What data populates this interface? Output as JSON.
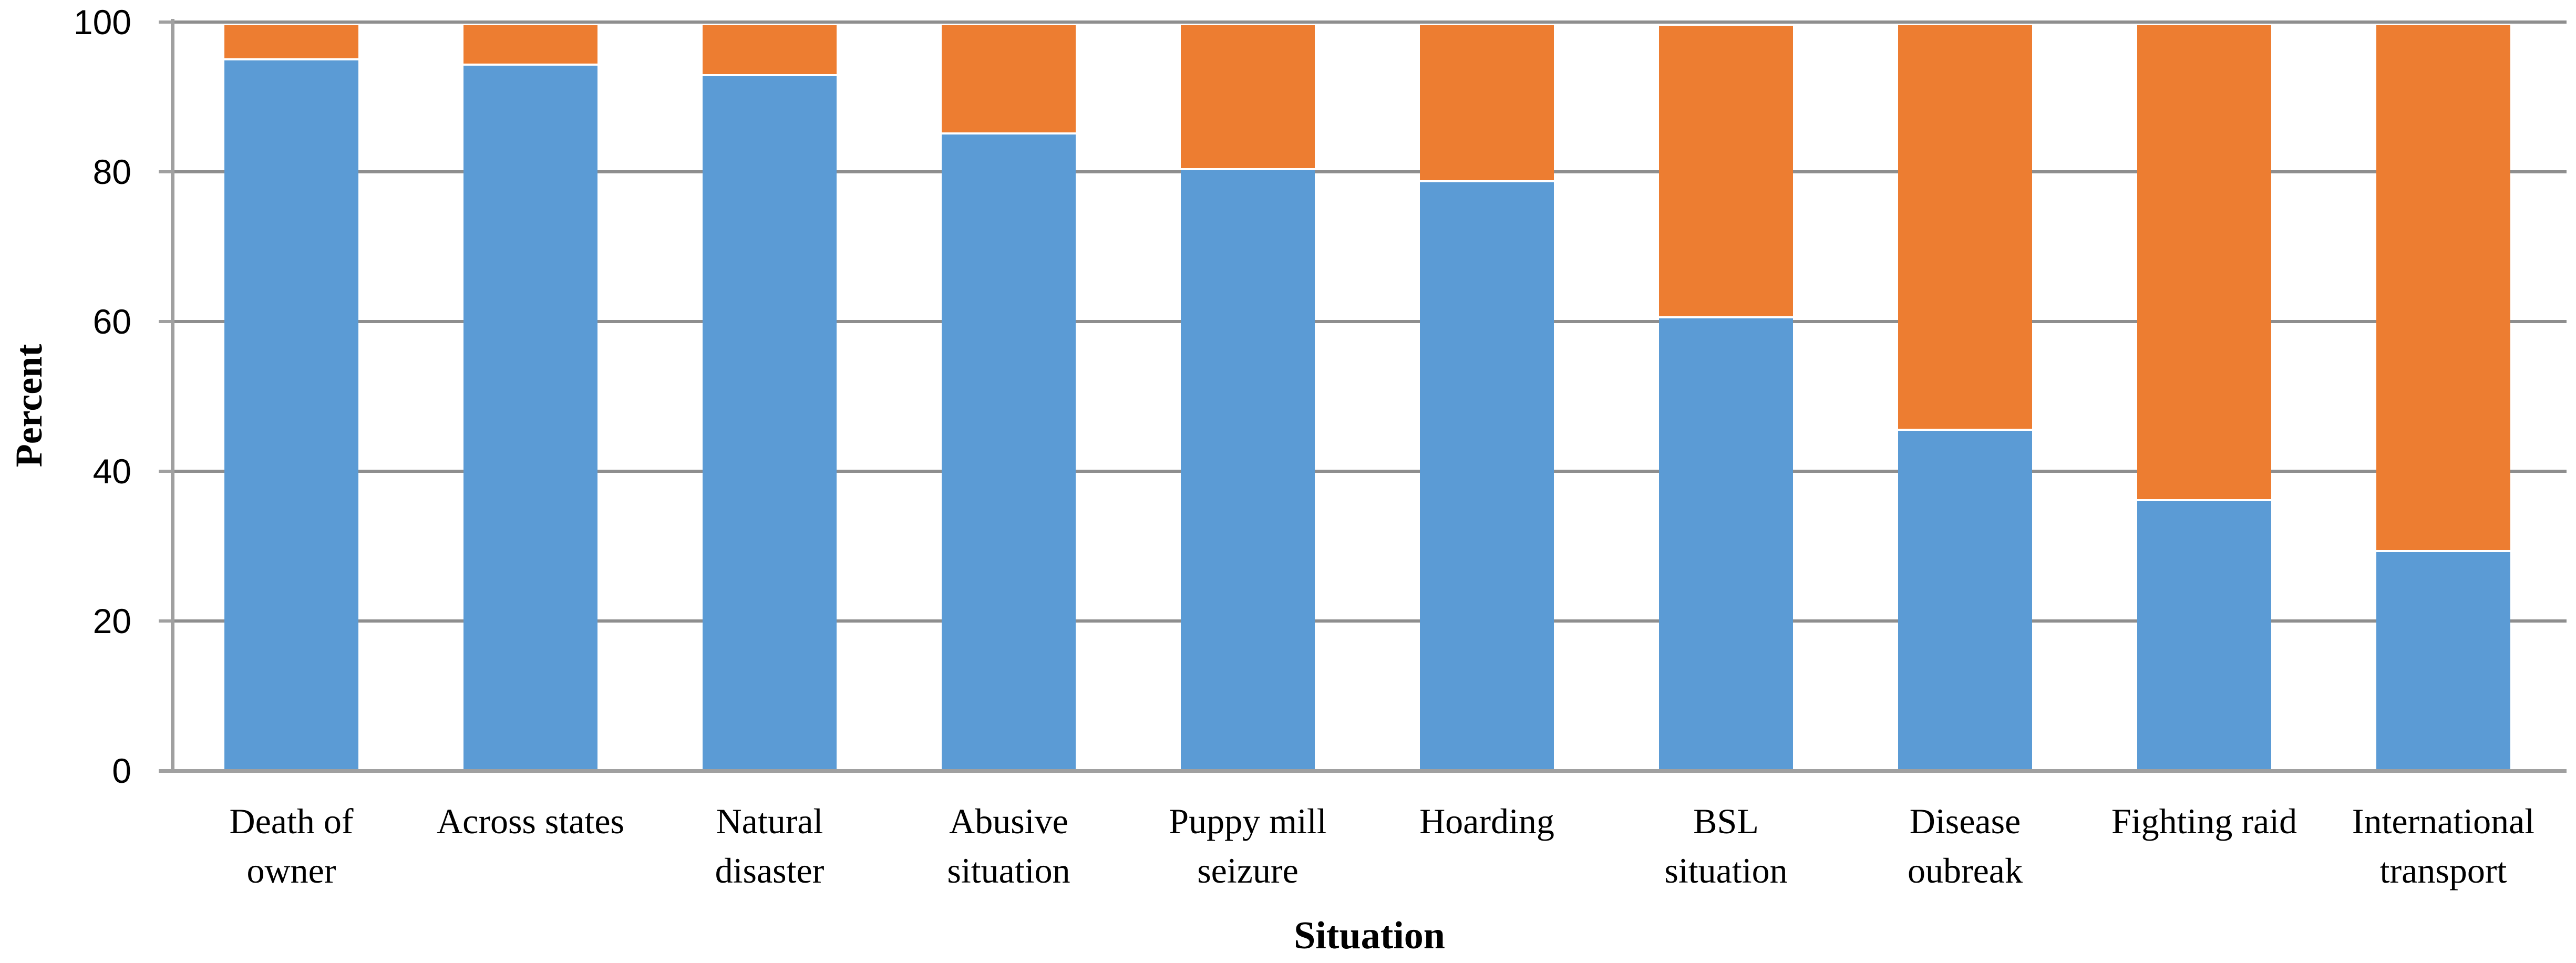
{
  "chart_data": {
    "type": "bar",
    "variant": "stacked-column",
    "title": "",
    "xlabel": "Situation",
    "ylabel": "Percent",
    "ylim": [
      0,
      100
    ],
    "yticks": [
      0,
      20,
      40,
      60,
      80,
      100
    ],
    "grid": "horizontal",
    "legend": "none",
    "categories": [
      "Death of owner",
      "Across states",
      "Natural disaster",
      "Abusive situation",
      "Puppy mill seizure",
      "Hoarding",
      "BSL situation",
      "Disease oubreak",
      "Fighting raid",
      "International transport"
    ],
    "category_label_lines": [
      [
        "Death of",
        "owner"
      ],
      [
        "Across states"
      ],
      [
        "Natural",
        "disaster"
      ],
      [
        "Abusive",
        "situation"
      ],
      [
        "Puppy mill",
        "seizure"
      ],
      [
        "Hoarding"
      ],
      [
        "BSL",
        "situation"
      ],
      [
        "Disease",
        "oubreak"
      ],
      [
        "Fighting raid"
      ],
      [
        "International",
        "transport"
      ]
    ],
    "series": [
      {
        "name": "blue",
        "color": "#5B9BD5",
        "values": [
          94.9,
          94.2,
          92.8,
          85.0,
          80.2,
          78.6,
          60.4,
          45.4,
          36.0,
          29.2
        ]
      },
      {
        "name": "orange",
        "color": "#ED7D31",
        "values": [
          5.1,
          5.8,
          7.2,
          15.0,
          19.8,
          21.4,
          39.1,
          54.6,
          64.0,
          70.8
        ]
      }
    ],
    "stack_totals": [
      100,
      100,
      100,
      100,
      100,
      100,
      99.5,
      100,
      100,
      100
    ]
  },
  "colors": {
    "blue_segment": "#5B9BD5",
    "orange_segment": "#ED7D31",
    "gridline": "#8E8E8E",
    "axis_line": "#A0A0A0",
    "text": "#000000",
    "background": "#FFFFFF"
  }
}
